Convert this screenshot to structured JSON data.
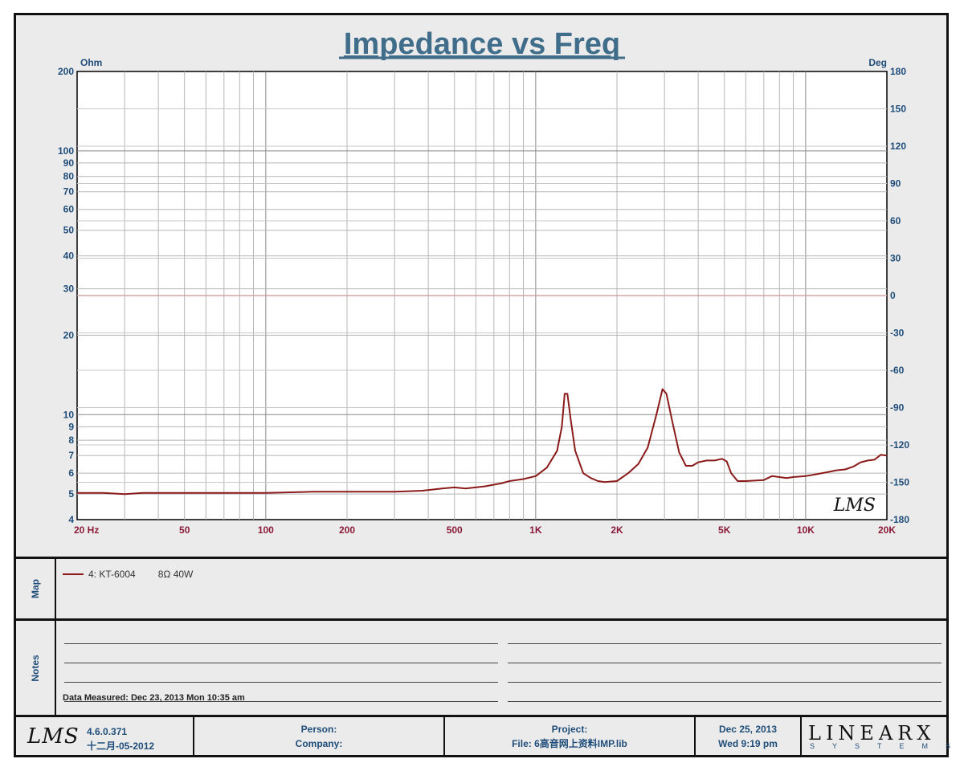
{
  "chart_data": {
    "type": "line",
    "title": "Impedance vs Freq",
    "left_unit": "Ohm",
    "right_unit": "Deg",
    "x_scale": "log",
    "y_scale": "log",
    "xlim": [
      20,
      20000
    ],
    "ylim": [
      4,
      200
    ],
    "y2lim": [
      -180,
      180
    ],
    "x_tick_labels": [
      {
        "v": 20,
        "t": "20  Hz"
      },
      {
        "v": 50,
        "t": "50"
      },
      {
        "v": 100,
        "t": "100"
      },
      {
        "v": 200,
        "t": "200"
      },
      {
        "v": 500,
        "t": "500"
      },
      {
        "v": 1000,
        "t": "1K"
      },
      {
        "v": 2000,
        "t": "2K"
      },
      {
        "v": 5000,
        "t": "5K"
      },
      {
        "v": 10000,
        "t": "10K"
      },
      {
        "v": 20000,
        "t": "20K"
      }
    ],
    "y_tick_labels": [
      {
        "v": 200,
        "t": "200"
      },
      {
        "v": 100,
        "t": "100"
      },
      {
        "v": 90,
        "t": "90"
      },
      {
        "v": 80,
        "t": "80"
      },
      {
        "v": 70,
        "t": "70"
      },
      {
        "v": 60,
        "t": "60"
      },
      {
        "v": 50,
        "t": "50"
      },
      {
        "v": 40,
        "t": "40"
      },
      {
        "v": 30,
        "t": "30"
      },
      {
        "v": 20,
        "t": "20"
      },
      {
        "v": 10,
        "t": "10"
      },
      {
        "v": 9,
        "t": "9"
      },
      {
        "v": 8,
        "t": "8"
      },
      {
        "v": 7,
        "t": "7"
      },
      {
        "v": 6,
        "t": "6"
      },
      {
        "v": 5,
        "t": "5"
      },
      {
        "v": 4,
        "t": "4"
      }
    ],
    "y2_tick_labels": [
      {
        "v": 180,
        "t": "180"
      },
      {
        "v": 150,
        "t": "150"
      },
      {
        "v": 120,
        "t": "120"
      },
      {
        "v": 90,
        "t": "90"
      },
      {
        "v": 60,
        "t": "60"
      },
      {
        "v": 30,
        "t": "30"
      },
      {
        "v": 0,
        "t": "0"
      },
      {
        "v": -30,
        "t": "-30"
      },
      {
        "v": -60,
        "t": "-60"
      },
      {
        "v": -90,
        "t": "-90"
      },
      {
        "v": -120,
        "t": "-120"
      },
      {
        "v": -150,
        "t": "-150"
      },
      {
        "v": -180,
        "t": "-180"
      }
    ],
    "grid": true,
    "series": [
      {
        "name": "4: KT-6004",
        "color": "#8b1a1a",
        "x": [
          20,
          25,
          30,
          35,
          40,
          50,
          60,
          80,
          100,
          150,
          200,
          300,
          380,
          450,
          500,
          550,
          650,
          750,
          800,
          900,
          1000,
          1100,
          1200,
          1250,
          1280,
          1310,
          1350,
          1400,
          1500,
          1600,
          1700,
          1800,
          2000,
          2200,
          2400,
          2600,
          2800,
          2950,
          3050,
          3200,
          3400,
          3600,
          3800,
          4000,
          4300,
          4600,
          4900,
          5100,
          5300,
          5600,
          6000,
          7000,
          7500,
          8000,
          8500,
          9000,
          10000,
          11000,
          12000,
          13000,
          14000,
          15000,
          16000,
          17000,
          18000,
          19000,
          20000
        ],
        "y": [
          5.05,
          5.05,
          5.0,
          5.05,
          5.05,
          5.05,
          5.05,
          5.05,
          5.05,
          5.1,
          5.1,
          5.1,
          5.15,
          5.25,
          5.3,
          5.25,
          5.35,
          5.5,
          5.6,
          5.7,
          5.85,
          6.3,
          7.3,
          9.0,
          12.0,
          12.0,
          9.5,
          7.3,
          6.0,
          5.75,
          5.6,
          5.55,
          5.6,
          6.0,
          6.5,
          7.5,
          10.0,
          12.5,
          12.0,
          9.5,
          7.2,
          6.4,
          6.4,
          6.6,
          6.7,
          6.7,
          6.8,
          6.65,
          6.0,
          5.6,
          5.6,
          5.65,
          5.85,
          5.8,
          5.75,
          5.8,
          5.85,
          5.95,
          6.05,
          6.15,
          6.2,
          6.35,
          6.6,
          6.7,
          6.75,
          7.05,
          7.0
        ]
      },
      {
        "name": "phase",
        "axis": "right",
        "color": "#d7a3a3",
        "x": [
          20,
          20000
        ],
        "y": [
          0,
          0
        ]
      }
    ],
    "watermark": "LMS"
  },
  "map": {
    "label": "Map",
    "entries": [
      {
        "name": "4: KT-6004",
        "spec": "8Ω  40W"
      }
    ]
  },
  "notes": {
    "label": "Notes",
    "measured": "Data Measured: Dec 23, 2013  Mon 10:35 am"
  },
  "footer": {
    "logo": "LMS",
    "version": "4.6.0.371",
    "build_date": "十二月-05-2012",
    "person_label": "Person:",
    "company_label": "Company:",
    "project_label": "Project:",
    "file_label": "File: 6高音网上资料IMP.lib",
    "date": "Dec 25, 2013",
    "day_time": "Wed  9:19 pm",
    "brand": "LINEARX",
    "brand_sub": "SYSTEMS"
  }
}
